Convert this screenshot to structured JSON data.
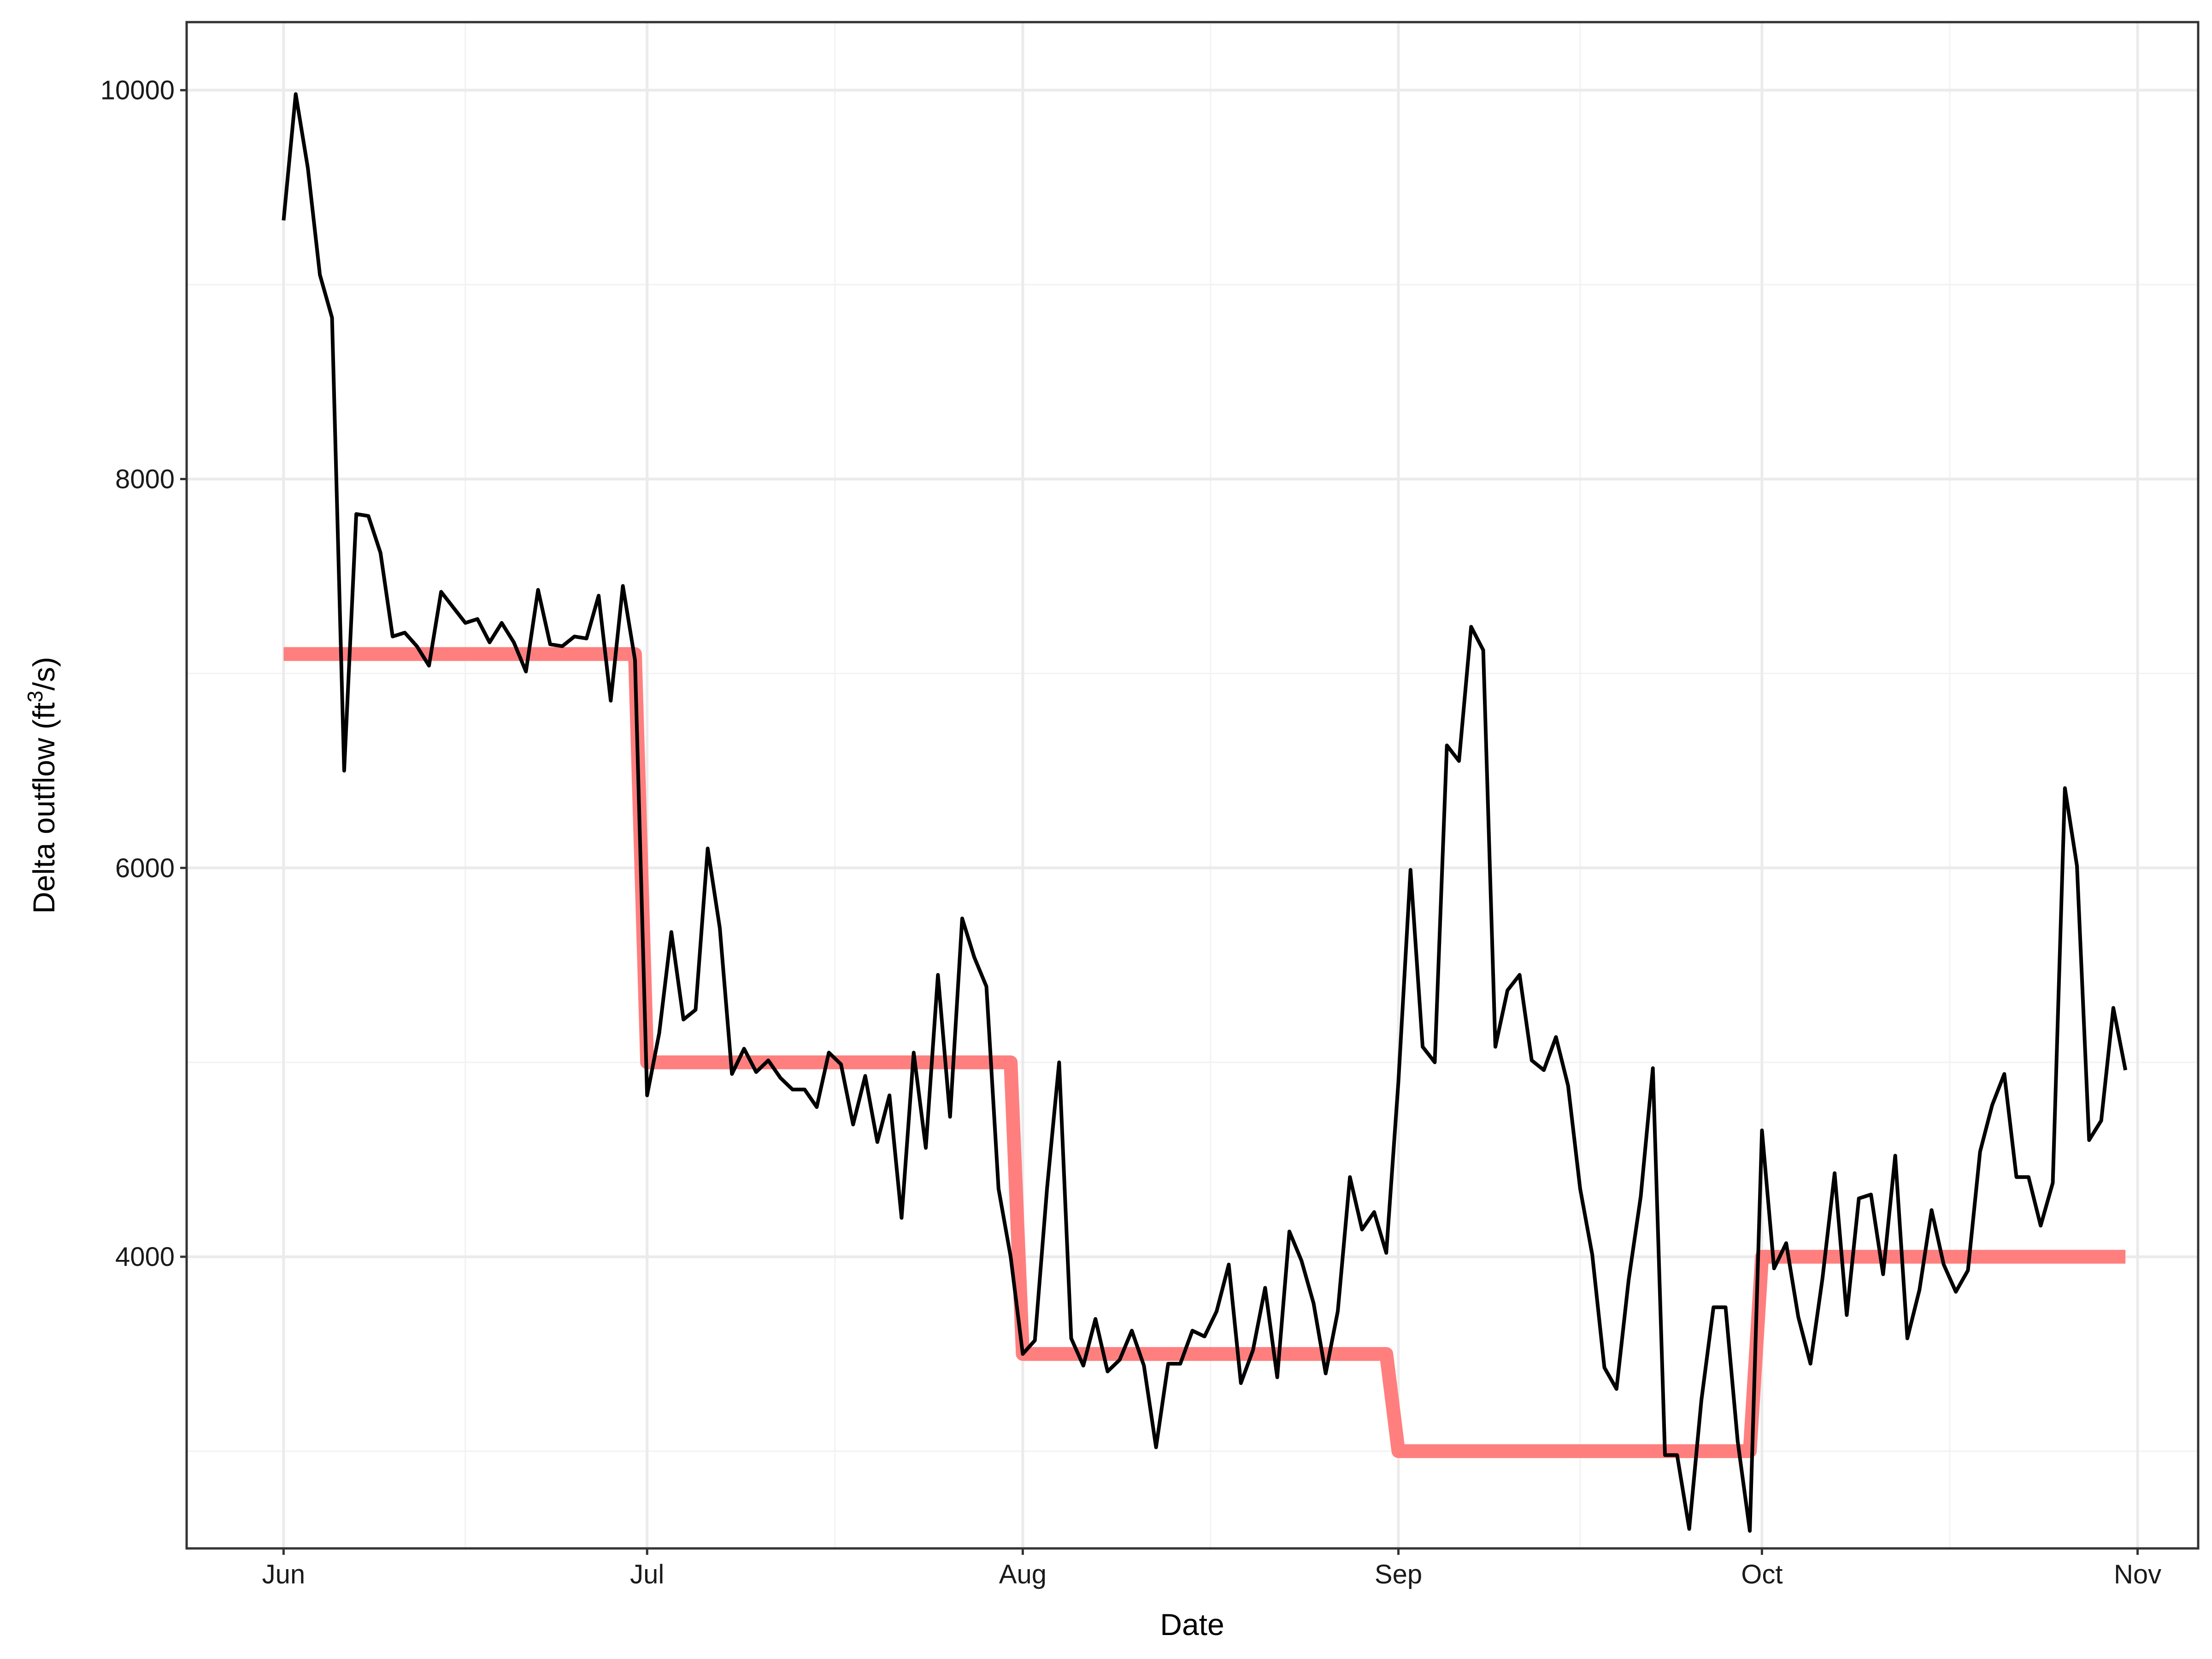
{
  "chart_data": {
    "type": "line",
    "xlabel": "Date",
    "ylabel": "Delta outflow (ft³/s)",
    "ylabel_parts": {
      "pre": "Delta outflow (ft",
      "sup": "3",
      "post": "/s)"
    },
    "x_ticks": [
      {
        "date": "2016-06-01",
        "label": "Jun"
      },
      {
        "date": "2016-07-01",
        "label": "Jul"
      },
      {
        "date": "2016-08-01",
        "label": "Aug"
      },
      {
        "date": "2016-09-01",
        "label": "Sep"
      },
      {
        "date": "2016-10-01",
        "label": "Oct"
      },
      {
        "date": "2016-11-01",
        "label": "Nov"
      }
    ],
    "xlim": [
      "2016-05-24",
      "2016-11-06"
    ],
    "y_ticks": [
      4000,
      6000,
      8000,
      10000
    ],
    "y_tick_labels": [
      "4000",
      "6000",
      "8000",
      "10000"
    ],
    "ylim": [
      2500,
      10350
    ],
    "grid": true,
    "series": [
      {
        "style": "step",
        "color": "#ff7f7f",
        "x": [
          "2016-06-01",
          "2016-06-30",
          "2016-07-01",
          "2016-07-31",
          "2016-08-01",
          "2016-08-31",
          "2016-09-01",
          "2016-09-30",
          "2016-10-01",
          "2016-10-31"
        ],
        "values": [
          7100,
          7100,
          5000,
          5000,
          3500,
          3500,
          3000,
          3000,
          4000,
          4000
        ]
      },
      {
        "style": "line",
        "color": "#000000",
        "start_date": "2016-06-01",
        "values": [
          9330,
          9980,
          9600,
          9050,
          8830,
          6500,
          7820,
          7810,
          7620,
          7190,
          7210,
          7140,
          7040,
          7420,
          7340,
          7260,
          7280,
          7160,
          7260,
          7160,
          7010,
          7430,
          7150,
          7140,
          7190,
          7180,
          7400,
          6860,
          7450,
          7070,
          4830,
          5150,
          5670,
          5220,
          5270,
          6100,
          5690,
          4940,
          5070,
          4950,
          5010,
          4920,
          4860,
          4860,
          4770,
          5050,
          4990,
          4680,
          4930,
          4590,
          4830,
          4200,
          5050,
          4560,
          5450,
          4720,
          5740,
          5540,
          5390,
          4350,
          4000,
          3500,
          3570,
          4350,
          5000,
          3580,
          3440,
          3680,
          3410,
          3470,
          3620,
          3440,
          3020,
          3450,
          3450,
          3620,
          3590,
          3720,
          3960,
          3350,
          3520,
          3840,
          3380,
          4130,
          3980,
          3760,
          3400,
          3720,
          4410,
          4140,
          4230,
          4020,
          4900,
          5990,
          5080,
          5000,
          6630,
          6550,
          7240,
          7120,
          5080,
          5370,
          5450,
          5010,
          4960,
          5130,
          4880,
          4350,
          4010,
          3430,
          3320,
          3880,
          4310,
          4970,
          2980,
          2980,
          2600,
          3260,
          3740,
          3740,
          3050,
          2590,
          4650,
          3940,
          4070,
          3690,
          3450,
          3890,
          4430,
          3700,
          4300,
          4320,
          3910,
          4520,
          3580,
          3830,
          4240,
          3960,
          3820,
          3930,
          4540,
          4780,
          4940,
          4410,
          4410,
          4160,
          4380,
          6410,
          6010,
          4600,
          4700,
          5280,
          4960
        ]
      }
    ]
  }
}
